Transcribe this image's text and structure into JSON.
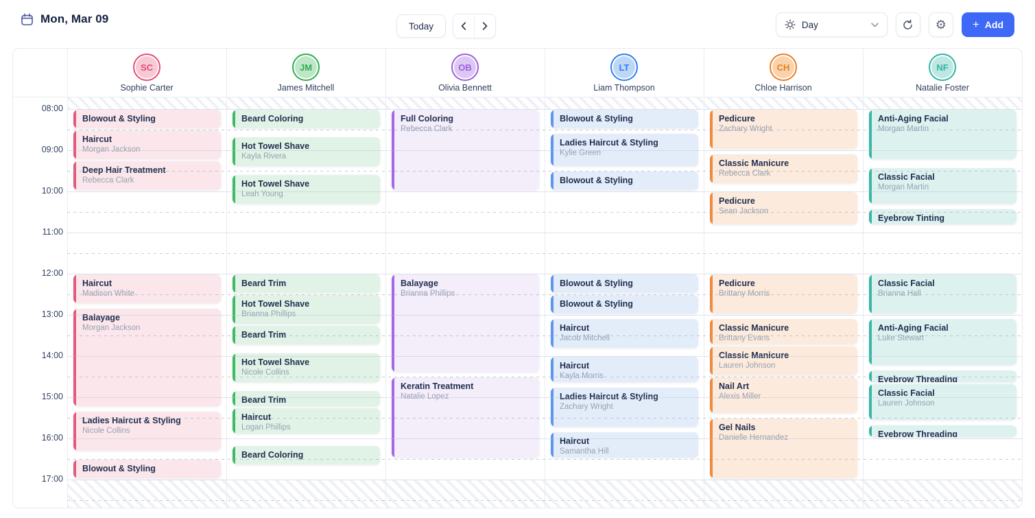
{
  "header": {
    "date_label": "Mon, Mar 09",
    "today_button": "Today",
    "view_selector": "Day",
    "add_button": "Add"
  },
  "icons": {
    "gear": "⚙",
    "plus": "+"
  },
  "colors": {
    "accent_blue": "#3e68f6",
    "panel_border": "#e7eaf1",
    "grid_line": "#e9ecf2"
  },
  "time_axis": [
    "08:00",
    "09:00",
    "10:00",
    "11:00",
    "12:00",
    "13:00",
    "14:00",
    "15:00",
    "16:00",
    "17:00"
  ],
  "palette": {
    "pink": {
      "bar": "#e4587c",
      "bg": "#fbe7eb",
      "tint": "#f6c9d4"
    },
    "green": {
      "bar": "#3cbb60",
      "bg": "#e1f3e6",
      "tint": "#bfe6c9"
    },
    "purple": {
      "bar": "#a667e4",
      "bg": "#f4edfa",
      "tint": "#ddc8f3"
    },
    "blue": {
      "bar": "#5e95ef",
      "bg": "#e3edfa",
      "tint": "#bed7f7"
    },
    "orange": {
      "bar": "#ef8a3e",
      "bg": "#fcebdc",
      "tint": "#f8d3ae"
    },
    "teal": {
      "bar": "#38b7a7",
      "bg": "#ddf2ef",
      "tint": "#bfe7e1"
    }
  },
  "staff": [
    {
      "name": "Sophie Carter",
      "initials": "SC",
      "color_key": "pink",
      "ring": "#e74c76",
      "appointments": [
        {
          "title": "Blowout & Styling",
          "client": "",
          "start": "08:00",
          "end": "08:30"
        },
        {
          "title": "Haircut",
          "client": "Morgan Jackson",
          "start": "08:30",
          "end": "09:15"
        },
        {
          "title": "Deep Hair Treatment",
          "client": "Rebecca Clark",
          "start": "09:15",
          "end": "10:00"
        },
        {
          "title": "Haircut",
          "client": "Madison White",
          "start": "12:00",
          "end": "12:45"
        },
        {
          "title": "Balayage",
          "client": "Morgan Jackson",
          "start": "12:50",
          "end": "15:15"
        },
        {
          "title": "Ladies Haircut & Styling",
          "client": "Nicole Collins",
          "start": "15:20",
          "end": "16:20"
        },
        {
          "title": "Blowout & Styling",
          "client": "",
          "start": "16:30",
          "end": "17:00"
        }
      ]
    },
    {
      "name": "James Mitchell",
      "initials": "JM",
      "color_key": "green",
      "ring": "#2fae4e",
      "appointments": [
        {
          "title": "Beard Coloring",
          "client": "",
          "start": "08:00",
          "end": "08:30"
        },
        {
          "title": "Hot Towel Shave",
          "client": "Kayla Rivera",
          "start": "08:40",
          "end": "09:25"
        },
        {
          "title": "Hot Towel Shave",
          "client": "Leah Young",
          "start": "09:35",
          "end": "10:20"
        },
        {
          "title": "Beard Trim",
          "client": "",
          "start": "12:00",
          "end": "12:30"
        },
        {
          "title": "Hot Towel Shave",
          "client": "Brianna Phillips",
          "start": "12:30",
          "end": "13:15"
        },
        {
          "title": "Beard Trim",
          "client": "",
          "start": "13:15",
          "end": "13:45"
        },
        {
          "title": "Hot Towel Shave",
          "client": "Nicole Collins",
          "start": "13:55",
          "end": "14:40"
        },
        {
          "title": "Beard Trim",
          "client": "",
          "start": "14:50",
          "end": "15:15"
        },
        {
          "title": "Haircut",
          "client": "Logan Phillips",
          "start": "15:15",
          "end": "15:55"
        },
        {
          "title": "Beard Coloring",
          "client": "",
          "start": "16:10",
          "end": "16:40"
        }
      ]
    },
    {
      "name": "Olivia Bennett",
      "initials": "OB",
      "color_key": "purple",
      "ring": "#9d5fe0",
      "appointments": [
        {
          "title": "Full Coloring",
          "client": "Rebecca Clark",
          "start": "08:00",
          "end": "10:00"
        },
        {
          "title": "Balayage",
          "client": "Brianna Phillips",
          "start": "12:00",
          "end": "14:25"
        },
        {
          "title": "Keratin Treatment",
          "client": "Natalie Lopez",
          "start": "14:30",
          "end": "16:30"
        }
      ]
    },
    {
      "name": "Liam Thompson",
      "initials": "LT",
      "color_key": "blue",
      "ring": "#2e7ff0",
      "appointments": [
        {
          "title": "Blowout & Styling",
          "client": "",
          "start": "08:00",
          "end": "08:30"
        },
        {
          "title": "Ladies Haircut & Styling",
          "client": "Kylie Green",
          "start": "08:35",
          "end": "09:25"
        },
        {
          "title": "Blowout & Styling",
          "client": "",
          "start": "09:30",
          "end": "10:00"
        },
        {
          "title": "Blowout & Styling",
          "client": "",
          "start": "12:00",
          "end": "12:30"
        },
        {
          "title": "Blowout & Styling",
          "client": "",
          "start": "12:30",
          "end": "13:00"
        },
        {
          "title": "Haircut",
          "client": "Jacob Mitchell",
          "start": "13:05",
          "end": "13:50"
        },
        {
          "title": "Haircut",
          "client": "Kayla Morris",
          "start": "14:00",
          "end": "14:40"
        },
        {
          "title": "Ladies Haircut & Styling",
          "client": "Zachary Wright",
          "start": "14:45",
          "end": "15:45"
        },
        {
          "title": "Haircut",
          "client": "Samantha Hill",
          "start": "15:50",
          "end": "16:30"
        }
      ]
    },
    {
      "name": "Chloe Harrison",
      "initials": "CH",
      "color_key": "orange",
      "ring": "#ef7d1f",
      "appointments": [
        {
          "title": "Pedicure",
          "client": "Zachary Wright",
          "start": "08:00",
          "end": "09:00"
        },
        {
          "title": "Classic Manicure",
          "client": "Rebecca Clark",
          "start": "09:05",
          "end": "09:50"
        },
        {
          "title": "Pedicure",
          "client": "Sean Jackson",
          "start": "10:00",
          "end": "10:50"
        },
        {
          "title": "Pedicure",
          "client": "Brittany Morris",
          "start": "12:00",
          "end": "13:00"
        },
        {
          "title": "Classic Manicure",
          "client": "Brittany Evans",
          "start": "13:05",
          "end": "13:45"
        },
        {
          "title": "Classic Manicure",
          "client": "Lauren Johnson",
          "start": "13:45",
          "end": "14:30"
        },
        {
          "title": "Nail Art",
          "client": "Alexis Miller",
          "start": "14:30",
          "end": "15:25"
        },
        {
          "title": "Gel Nails",
          "client": "Danielle Hernandez",
          "start": "15:30",
          "end": "17:00"
        }
      ]
    },
    {
      "name": "Natalie Foster",
      "initials": "NF",
      "color_key": "teal",
      "ring": "#2fb3a4",
      "appointments": [
        {
          "title": "Anti-Aging Facial",
          "client": "Morgan Martin",
          "start": "08:00",
          "end": "09:15"
        },
        {
          "title": "Classic Facial",
          "client": "Morgan Martin",
          "start": "09:25",
          "end": "10:20"
        },
        {
          "title": "Eyebrow Tinting",
          "client": "",
          "start": "10:25",
          "end": "10:50"
        },
        {
          "title": "Classic Facial",
          "client": "Brianna Hall",
          "start": "12:00",
          "end": "13:00"
        },
        {
          "title": "Anti-Aging Facial",
          "client": "Luke Stewart",
          "start": "13:05",
          "end": "14:15"
        },
        {
          "title": "Eyebrow Threading",
          "client": "",
          "start": "14:20",
          "end": "14:40"
        },
        {
          "title": "Classic Facial",
          "client": "Lauren Johnson",
          "start": "14:40",
          "end": "15:35"
        },
        {
          "title": "Eyebrow Threading",
          "client": "",
          "start": "15:40",
          "end": "16:00"
        }
      ]
    }
  ]
}
